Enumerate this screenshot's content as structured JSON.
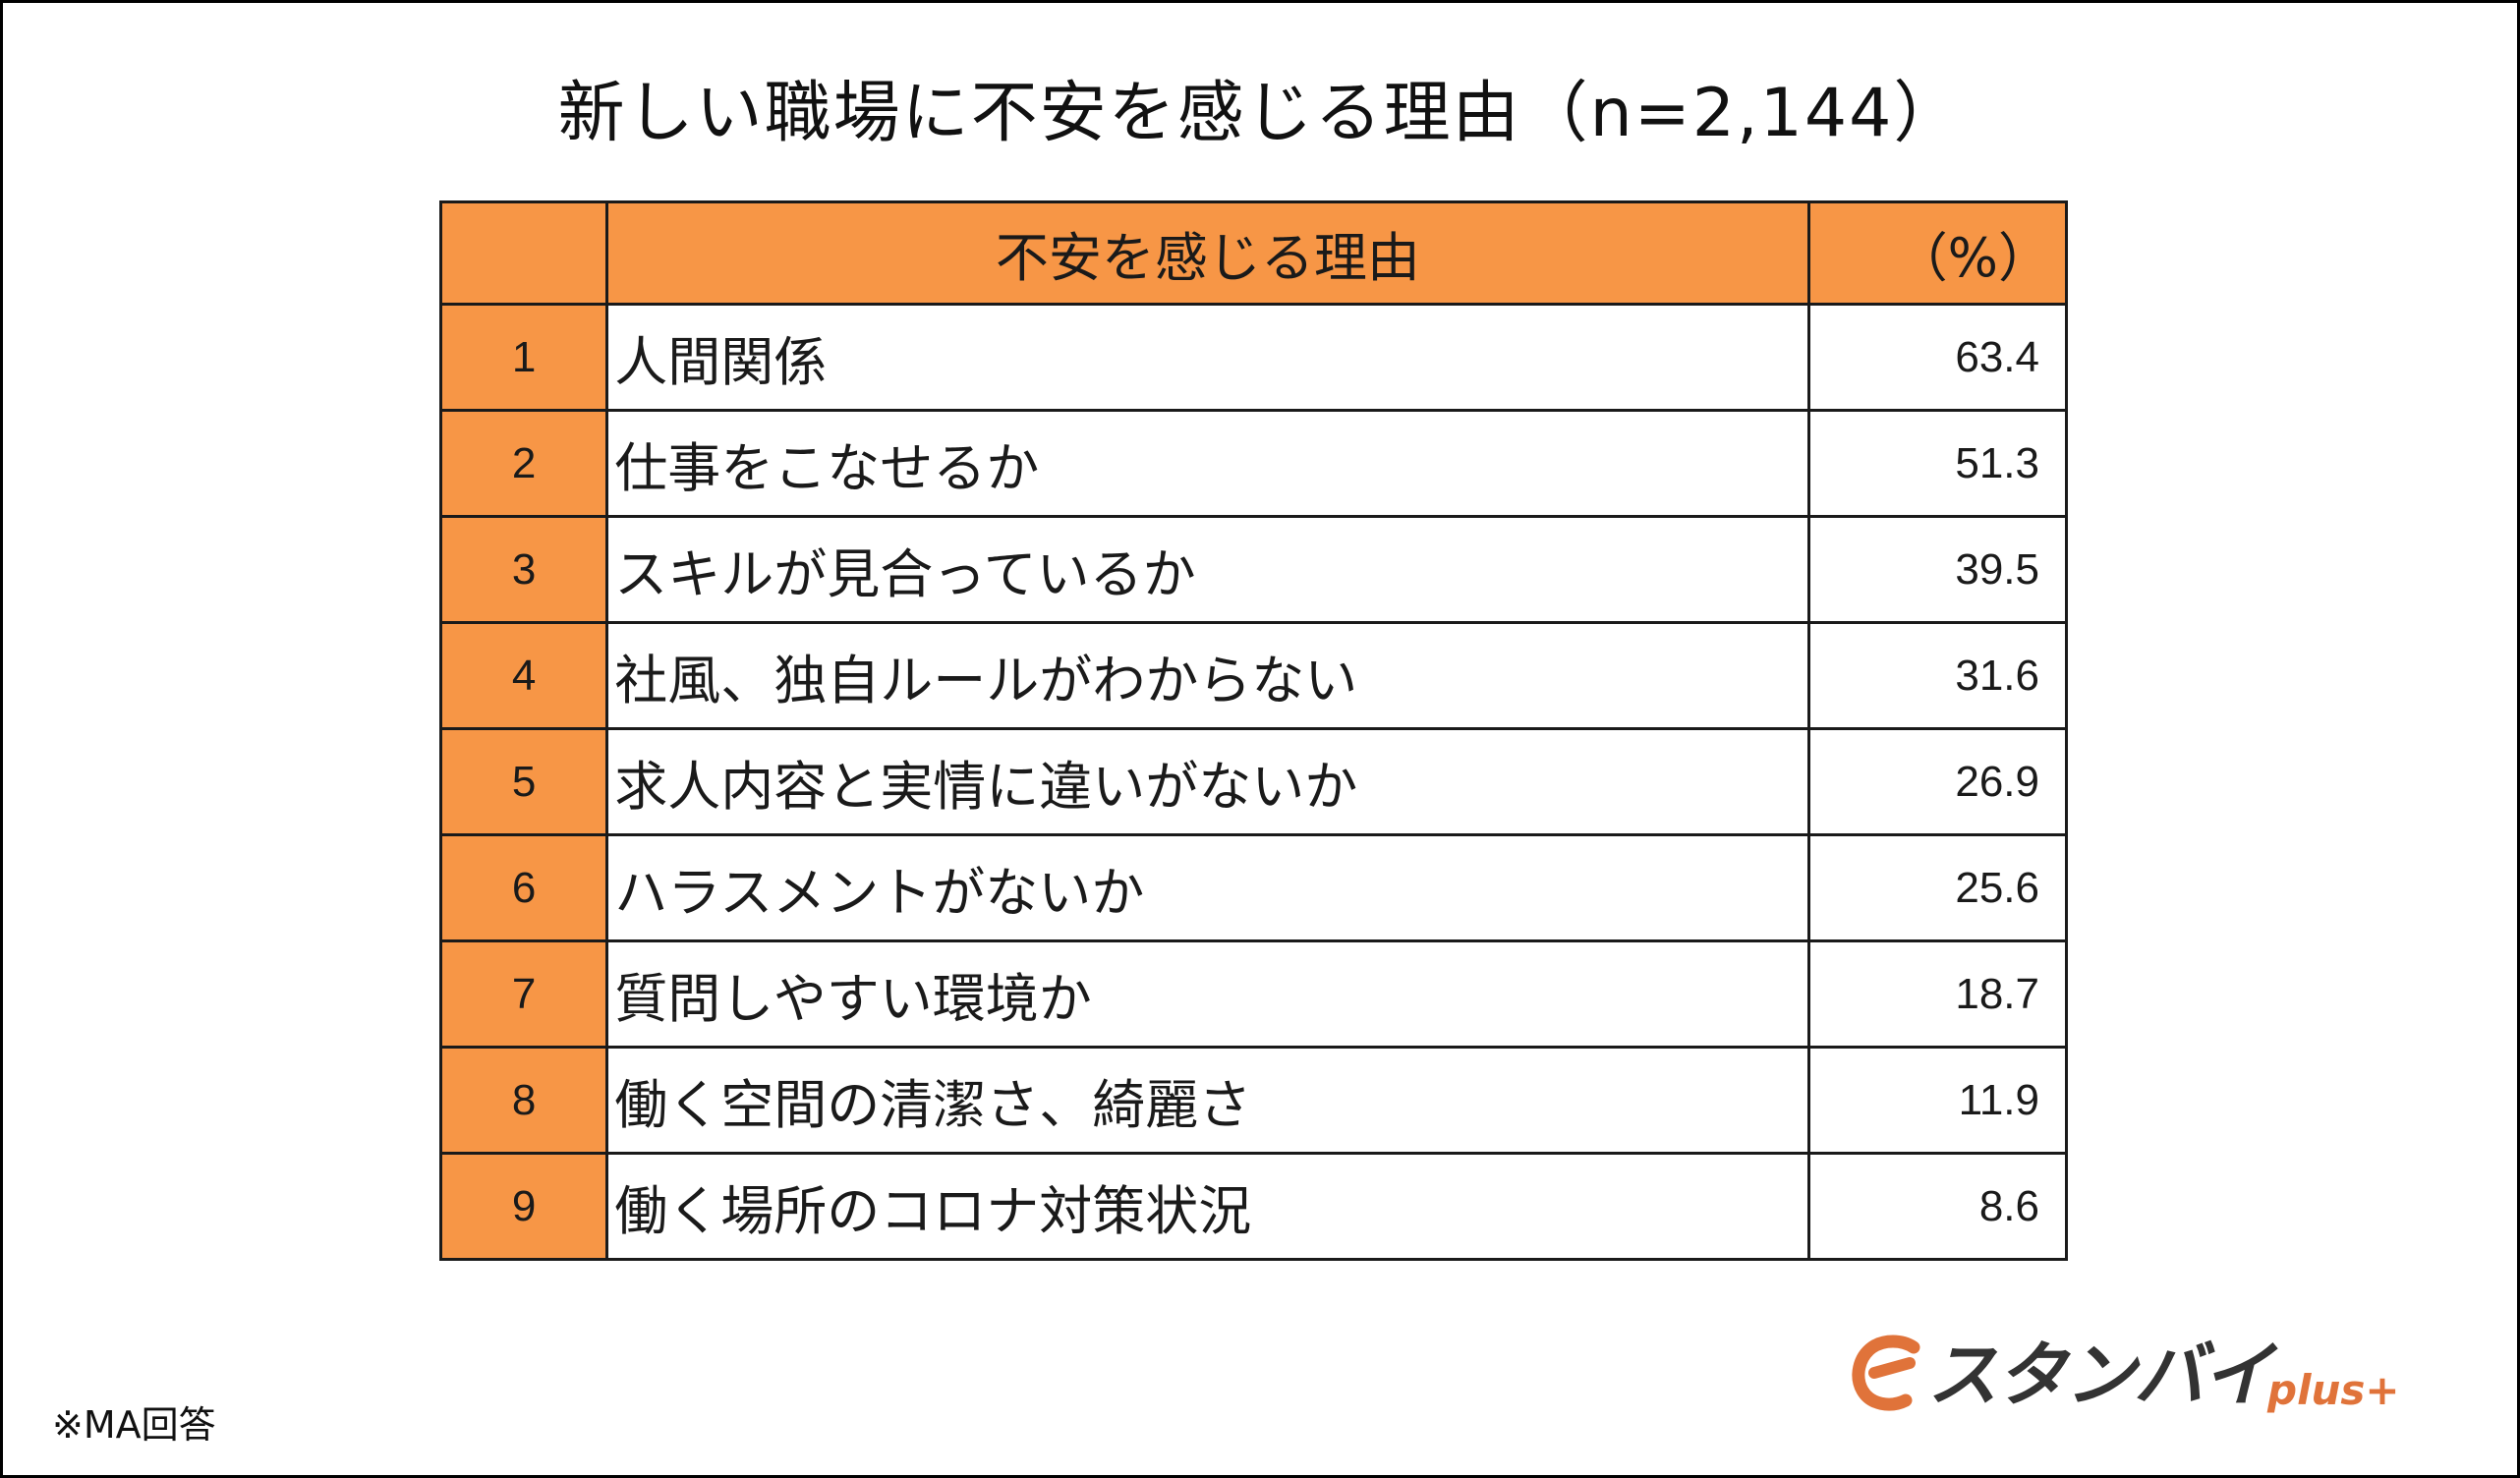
{
  "title": "新しい職場に不安を感じる理由（n=2,144）",
  "table": {
    "headers": [
      "",
      "不安を感じる理由",
      "（%）"
    ],
    "rows": [
      {
        "rank": "1",
        "reason": "人間関係",
        "value": "63.4"
      },
      {
        "rank": "2",
        "reason": "仕事をこなせるか",
        "value": "51.3"
      },
      {
        "rank": "3",
        "reason": "スキルが見合っているか",
        "value": "39.5"
      },
      {
        "rank": "4",
        "reason": "社風、独自ルールがわからない",
        "value": "31.6"
      },
      {
        "rank": "5",
        "reason": "求人内容と実情に違いがないか",
        "value": "26.9"
      },
      {
        "rank": "6",
        "reason": "ハラスメントがないか",
        "value": "25.6"
      },
      {
        "rank": "7",
        "reason": "質問しやすい環境か",
        "value": "18.7"
      },
      {
        "rank": "8",
        "reason": "働く空間の清潔さ、綺麗さ",
        "value": "11.9"
      },
      {
        "rank": "9",
        "reason": "働く場所のコロナ対策状況",
        "value": "8.6"
      }
    ]
  },
  "footnote": "※MA回答",
  "logo": {
    "text": "スタンバイ",
    "sub": "plus+"
  },
  "colors": {
    "header_fill": "#f79646",
    "rank_fill": "#f79646",
    "border": "#1a1a1a",
    "logo_accent": "#e0733a",
    "logo_text": "#333333"
  },
  "chart_data": {
    "type": "table",
    "title": "新しい職場に不安を感じる理由（n=2,144）",
    "columns": [
      "",
      "不安を感じる理由",
      "（%）"
    ],
    "categories": [
      "人間関係",
      "仕事をこなせるか",
      "スキルが見合っているか",
      "社風、独自ルールがわからない",
      "求人内容と実情に違いがないか",
      "ハラスメントがないか",
      "質問しやすい環境か",
      "働く空間の清潔さ、綺麗さ",
      "働く場所のコロナ対策状況"
    ],
    "values": [
      63.4,
      51.3,
      39.5,
      31.6,
      26.9,
      25.6,
      18.7,
      11.9,
      8.6
    ]
  }
}
